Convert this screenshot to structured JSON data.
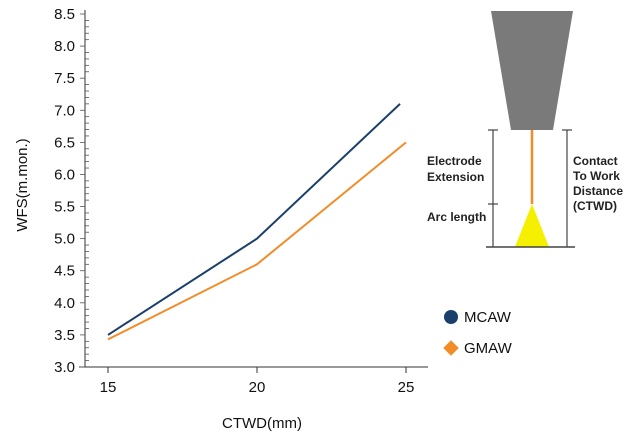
{
  "chart_data": {
    "type": "line",
    "xlabel": "CTWD(mm)",
    "ylabel": "WFS(m.mon.)",
    "x_ticks": [
      "15",
      "20",
      "25"
    ],
    "y_ticks": [
      "3.0",
      "3.5",
      "4.0",
      "4.5",
      "5.0",
      "5.5",
      "6.0",
      "6.5",
      "7.0",
      "7.5",
      "8.0",
      "8.5"
    ],
    "xlim": [
      14,
      26
    ],
    "ylim": [
      3.0,
      8.5
    ],
    "legend_position": "right",
    "series": [
      {
        "name": "MCAW",
        "color": "#1b3f6b",
        "marker": "circle",
        "x": [
          15,
          20,
          24.8
        ],
        "y": [
          3.5,
          5.0,
          7.1
        ]
      },
      {
        "name": "GMAW",
        "color": "#f28c28",
        "marker": "diamond",
        "x": [
          15,
          20,
          25
        ],
        "y": [
          3.43,
          4.6,
          6.5
        ]
      }
    ]
  },
  "diagram": {
    "electrode_extension_label": [
      "Electrode",
      "Extension"
    ],
    "arc_length_label": "Arc length",
    "ctwd_label": [
      "Contact",
      "To Work",
      "Distance",
      "(CTWD)"
    ],
    "torch_color": "#7a7a7a",
    "arc_color": "#f5f000",
    "wire_color": "#f28c28"
  }
}
